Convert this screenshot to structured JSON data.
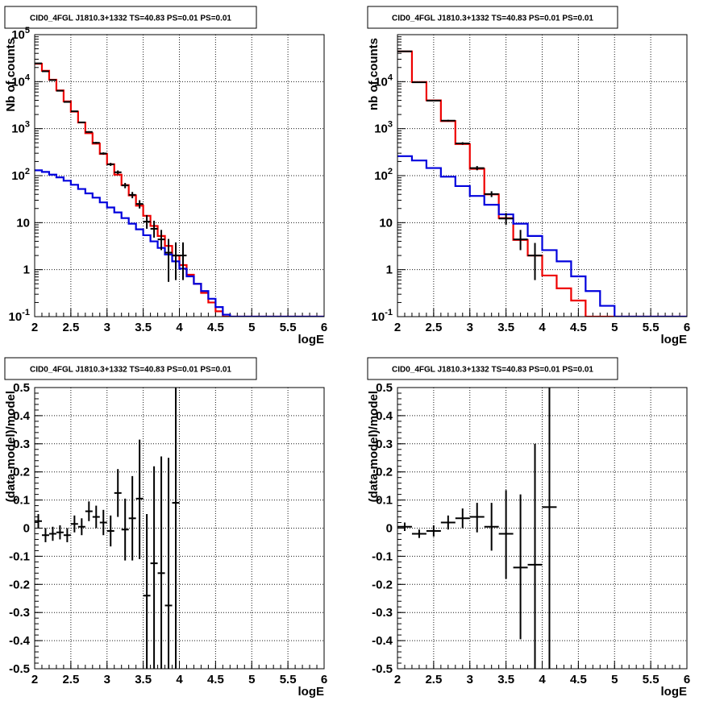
{
  "chart_data": [
    {
      "type": "step-histogram",
      "title": "CID0_4FGL J1810.3+1332 TS=40.83 PS=0.01 PS=0.01",
      "xlabel": "logE",
      "ylabel": "Nb of counts",
      "xlim": [
        2,
        6
      ],
      "ylim": [
        0.1,
        100000
      ],
      "yscale": "log",
      "grid": true,
      "x_ticks": [
        "2",
        "2.5",
        "3",
        "3.5",
        "4",
        "4.5",
        "5",
        "5.5",
        "6"
      ],
      "y_ticks": [
        "10^{-1}",
        "1",
        "10",
        "10^{2}",
        "10^{3}",
        "10^{4}",
        "10^{5}"
      ],
      "bin_edges": [
        2.0,
        2.1,
        2.2,
        2.3,
        2.4,
        2.5,
        2.6,
        2.7,
        2.8,
        2.9,
        3.0,
        3.1,
        3.2,
        3.3,
        3.4,
        3.5,
        3.6,
        3.7,
        3.8,
        3.9,
        4.0,
        4.1,
        4.2,
        4.3,
        4.4,
        4.5,
        4.6,
        4.7,
        4.8,
        4.9,
        5.0,
        5.1,
        5.2,
        5.3,
        5.4,
        5.5,
        5.6,
        5.7,
        5.8,
        5.9,
        6.0
      ],
      "series": [
        {
          "color": "#ee0000",
          "kind": "model-total",
          "values": [
            24000,
            17000,
            11000,
            6500,
            3800,
            2300,
            1350,
            800,
            480,
            290,
            175,
            105,
            63,
            38,
            23,
            14,
            8.5,
            5.2,
            3.2,
            2.0,
            1.25,
            0.78,
            0.5,
            0.32,
            0.2,
            0.13,
            0.1,
            0.1,
            0.1,
            0.1,
            0.1,
            0.1,
            0.1,
            0.1,
            0.1,
            0.1,
            0.1,
            0.1,
            0.1,
            0.1
          ]
        },
        {
          "color": "#0000dd",
          "kind": "model-source",
          "values": [
            130,
            120,
            105,
            92,
            78,
            64,
            52,
            42,
            34,
            27,
            21,
            16.5,
            12.5,
            9.5,
            7.2,
            5.4,
            4.0,
            2.9,
            2.1,
            1.5,
            1.05,
            0.72,
            0.5,
            0.35,
            0.24,
            0.16,
            0.11,
            0.1,
            0.1,
            0.1,
            0.1,
            0.1,
            0.1,
            0.1,
            0.1,
            0.1,
            0.1,
            0.1,
            0.1,
            0.1
          ]
        },
        {
          "color": "#000000",
          "kind": "data",
          "points": [
            {
              "x": 2.05,
              "y": 24500,
              "ylo": 24300,
              "yhi": 24700
            },
            {
              "x": 2.15,
              "y": 16600,
              "ylo": 16450,
              "yhi": 16750
            },
            {
              "x": 2.25,
              "y": 10800,
              "ylo": 10700,
              "yhi": 10900
            },
            {
              "x": 2.35,
              "y": 6400,
              "ylo": 6320,
              "yhi": 6480
            },
            {
              "x": 2.45,
              "y": 3700,
              "ylo": 3640,
              "yhi": 3760
            },
            {
              "x": 2.55,
              "y": 2340,
              "ylo": 2290,
              "yhi": 2390
            },
            {
              "x": 2.65,
              "y": 1360,
              "ylo": 1320,
              "yhi": 1400
            },
            {
              "x": 2.75,
              "y": 850,
              "ylo": 820,
              "yhi": 880
            },
            {
              "x": 2.85,
              "y": 500,
              "ylo": 478,
              "yhi": 522
            },
            {
              "x": 2.95,
              "y": 296,
              "ylo": 279,
              "yhi": 313
            },
            {
              "x": 3.05,
              "y": 174,
              "ylo": 161,
              "yhi": 187
            },
            {
              "x": 3.15,
              "y": 118,
              "ylo": 107,
              "yhi": 129
            },
            {
              "x": 3.25,
              "y": 62,
              "ylo": 54,
              "yhi": 70
            },
            {
              "x": 3.35,
              "y": 39,
              "ylo": 33,
              "yhi": 45
            },
            {
              "x": 3.45,
              "y": 25,
              "ylo": 20,
              "yhi": 30
            },
            {
              "x": 3.55,
              "y": 10.5,
              "ylo": 7.4,
              "yhi": 14.5
            },
            {
              "x": 3.65,
              "y": 7.4,
              "ylo": 4.8,
              "yhi": 11
            },
            {
              "x": 3.75,
              "y": 4.4,
              "ylo": 2.6,
              "yhi": 7
            },
            {
              "x": 3.85,
              "y": 2.3,
              "ylo": 0.55,
              "yhi": 4.5
            },
            {
              "x": 3.95,
              "y": 2.0,
              "ylo": 0.6,
              "yhi": 3.8
            },
            {
              "x": 4.05,
              "y": 2.0,
              "ylo": 0.6,
              "yhi": 3.8
            }
          ]
        }
      ]
    },
    {
      "type": "step-histogram",
      "title": "CID0_4FGL J1810.3+1332 TS=40.83 PS=0.01 PS=0.01",
      "xlabel": "logE",
      "ylabel": "nb of counts",
      "xlim": [
        2,
        6
      ],
      "ylim": [
        0.1,
        100000
      ],
      "yscale": "log",
      "grid": true,
      "x_ticks": [
        "2",
        "2.5",
        "3",
        "3.5",
        "4",
        "4.5",
        "5",
        "5.5",
        "6"
      ],
      "y_ticks": [
        "10^{-1}",
        "1",
        "10",
        "10^{2}",
        "10^{3}",
        "10^{4}"
      ],
      "bin_edges": [
        2.0,
        2.2,
        2.4,
        2.6,
        2.8,
        3.0,
        3.2,
        3.4,
        3.6,
        3.8,
        4.0,
        4.2,
        4.4,
        4.6,
        4.8,
        5.0,
        5.2,
        5.4,
        5.6,
        5.8,
        6.0
      ],
      "series": [
        {
          "color": "#ee0000",
          "kind": "model-total",
          "values": [
            44000,
            9800,
            4000,
            1450,
            470,
            140,
            40,
            12.5,
            4.3,
            2.0,
            0.75,
            0.4,
            0.22,
            0.1,
            0.1,
            0.1,
            0.1,
            0.1,
            0.1,
            0.1
          ]
        },
        {
          "color": "#0000dd",
          "kind": "model-source",
          "values": [
            260,
            210,
            145,
            95,
            60,
            37,
            24,
            15,
            9.5,
            5.2,
            2.6,
            1.5,
            0.72,
            0.35,
            0.17,
            0.1,
            0.1,
            0.1,
            0.1,
            0.1
          ]
        },
        {
          "color": "#000000",
          "kind": "data",
          "points": [
            {
              "x": 2.1,
              "y": 44000,
              "ylo": 43600,
              "yhi": 44400
            },
            {
              "x": 2.3,
              "y": 9700,
              "ylo": 9550,
              "yhi": 9850
            },
            {
              "x": 2.5,
              "y": 3950,
              "ylo": 3850,
              "yhi": 4050
            },
            {
              "x": 2.7,
              "y": 1480,
              "ylo": 1420,
              "yhi": 1540
            },
            {
              "x": 2.9,
              "y": 485,
              "ylo": 455,
              "yhi": 515
            },
            {
              "x": 3.1,
              "y": 145,
              "ylo": 130,
              "yhi": 160
            },
            {
              "x": 3.3,
              "y": 40.5,
              "ylo": 35,
              "yhi": 46.5
            },
            {
              "x": 3.5,
              "y": 12.2,
              "ylo": 9,
              "yhi": 16
            },
            {
              "x": 3.7,
              "y": 4.4,
              "ylo": 2.6,
              "yhi": 7
            },
            {
              "x": 3.9,
              "y": 2.0,
              "ylo": 0.6,
              "yhi": 3.7
            }
          ]
        }
      ]
    },
    {
      "type": "scatter-errorbar",
      "title": "CID0_4FGL J1810.3+1332 TS=40.83 PS=0.01 PS=0.01",
      "xlabel": "logE",
      "ylabel": "(data-model)/model",
      "xlim": [
        2,
        6
      ],
      "ylim": [
        -0.5,
        0.5
      ],
      "grid": true,
      "x_ticks": [
        "2",
        "2.5",
        "3",
        "3.5",
        "4",
        "4.5",
        "5",
        "5.5",
        "6"
      ],
      "y_ticks": [
        "-0.5",
        "-0.4",
        "-0.3",
        "-0.2",
        "-0.1",
        "0",
        "0.1",
        "0.2",
        "0.3",
        "0.4",
        "0.5"
      ],
      "xerr": 0.05,
      "points": [
        {
          "x": 2.05,
          "y": 0.025,
          "ylo": 0.0,
          "yhi": 0.05
        },
        {
          "x": 2.15,
          "y": -0.025,
          "ylo": -0.05,
          "yhi": 0.0
        },
        {
          "x": 2.25,
          "y": -0.02,
          "ylo": -0.045,
          "yhi": 0.005
        },
        {
          "x": 2.35,
          "y": -0.015,
          "ylo": -0.04,
          "yhi": 0.01
        },
        {
          "x": 2.45,
          "y": -0.025,
          "ylo": -0.05,
          "yhi": 0.0
        },
        {
          "x": 2.55,
          "y": 0.015,
          "ylo": -0.015,
          "yhi": 0.045
        },
        {
          "x": 2.65,
          "y": 0.005,
          "ylo": -0.025,
          "yhi": 0.035
        },
        {
          "x": 2.75,
          "y": 0.06,
          "ylo": 0.025,
          "yhi": 0.095
        },
        {
          "x": 2.85,
          "y": 0.04,
          "ylo": 0.0,
          "yhi": 0.08
        },
        {
          "x": 2.95,
          "y": 0.02,
          "ylo": -0.025,
          "yhi": 0.065
        },
        {
          "x": 3.05,
          "y": -0.01,
          "ylo": -0.065,
          "yhi": 0.045
        },
        {
          "x": 3.15,
          "y": 0.125,
          "ylo": 0.04,
          "yhi": 0.21
        },
        {
          "x": 3.25,
          "y": -0.005,
          "ylo": -0.115,
          "yhi": 0.105
        },
        {
          "x": 3.35,
          "y": 0.035,
          "ylo": -0.115,
          "yhi": 0.185
        },
        {
          "x": 3.45,
          "y": 0.105,
          "ylo": -0.11,
          "yhi": 0.315
        },
        {
          "x": 3.55,
          "y": -0.24,
          "ylo": -0.5,
          "yhi": 0.05
        },
        {
          "x": 3.65,
          "y": -0.125,
          "ylo": -0.5,
          "yhi": 0.22
        },
        {
          "x": 3.75,
          "y": -0.16,
          "ylo": -0.5,
          "yhi": 0.255
        },
        {
          "x": 3.85,
          "y": -0.275,
          "ylo": -0.5,
          "yhi": 0.25
        },
        {
          "x": 3.95,
          "y": 0.09,
          "ylo": -0.5,
          "yhi": 0.5
        }
      ]
    },
    {
      "type": "scatter-errorbar",
      "title": "CID0_4FGL J1810.3+1332 TS=40.83 PS=0.01 PS=0.01",
      "xlabel": "logE",
      "ylabel": "(data-model)/model",
      "xlim": [
        2,
        6
      ],
      "ylim": [
        -0.5,
        0.5
      ],
      "grid": true,
      "x_ticks": [
        "2",
        "2.5",
        "3",
        "3.5",
        "4",
        "4.5",
        "5",
        "5.5",
        "6"
      ],
      "y_ticks": [
        "-0.5",
        "-0.4",
        "-0.3",
        "-0.2",
        "-0.1",
        "0",
        "0.1",
        "0.2",
        "0.3",
        "0.4",
        "0.5"
      ],
      "xerr": 0.1,
      "points": [
        {
          "x": 2.1,
          "y": 0.005,
          "ylo": -0.01,
          "yhi": 0.02
        },
        {
          "x": 2.3,
          "y": -0.02,
          "ylo": -0.035,
          "yhi": -0.005
        },
        {
          "x": 2.5,
          "y": -0.01,
          "ylo": -0.03,
          "yhi": 0.01
        },
        {
          "x": 2.7,
          "y": 0.02,
          "ylo": -0.005,
          "yhi": 0.045
        },
        {
          "x": 2.9,
          "y": 0.035,
          "ylo": 0.0,
          "yhi": 0.07
        },
        {
          "x": 3.1,
          "y": 0.04,
          "ylo": -0.015,
          "yhi": 0.09
        },
        {
          "x": 3.3,
          "y": 0.005,
          "ylo": -0.08,
          "yhi": 0.09
        },
        {
          "x": 3.5,
          "y": -0.02,
          "ylo": -0.18,
          "yhi": 0.135
        },
        {
          "x": 3.7,
          "y": -0.14,
          "ylo": -0.395,
          "yhi": 0.12
        },
        {
          "x": 3.9,
          "y": -0.13,
          "ylo": -0.5,
          "yhi": 0.3
        },
        {
          "x": 4.1,
          "y": 0.075,
          "ylo": -0.5,
          "yhi": 0.5
        }
      ]
    }
  ]
}
